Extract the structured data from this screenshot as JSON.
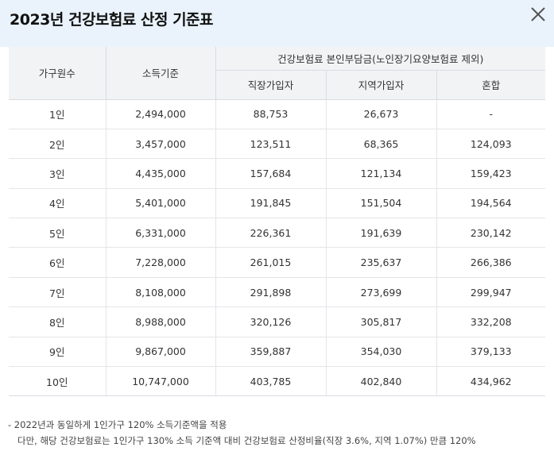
{
  "header": {
    "title": "2023년 건강보험료 산정 기준표",
    "close_icon": "close-icon"
  },
  "table": {
    "headers": {
      "household": "가구원수",
      "income": "소득기준",
      "group": "건강보험료 본인부담금(노인장기요양보험료 제외)",
      "employee": "직장가입자",
      "regional": "지역가입자",
      "mixed": "혼합"
    },
    "rows": [
      {
        "household": "1인",
        "income": "2,494,000",
        "employee": "88,753",
        "regional": "26,673",
        "mixed": "-"
      },
      {
        "household": "2인",
        "income": "3,457,000",
        "employee": "123,511",
        "regional": "68,365",
        "mixed": "124,093"
      },
      {
        "household": "3인",
        "income": "4,435,000",
        "employee": "157,684",
        "regional": "121,134",
        "mixed": "159,423"
      },
      {
        "household": "4인",
        "income": "5,401,000",
        "employee": "191,845",
        "regional": "151,504",
        "mixed": "194,564"
      },
      {
        "household": "5인",
        "income": "6,331,000",
        "employee": "226,361",
        "regional": "191,639",
        "mixed": "230,142"
      },
      {
        "household": "6인",
        "income": "7,228,000",
        "employee": "261,015",
        "regional": "235,637",
        "mixed": "266,386"
      },
      {
        "household": "7인",
        "income": "8,108,000",
        "employee": "291,898",
        "regional": "273,699",
        "mixed": "299,947"
      },
      {
        "household": "8인",
        "income": "8,988,000",
        "employee": "320,126",
        "regional": "305,817",
        "mixed": "332,208"
      },
      {
        "household": "9인",
        "income": "9,867,000",
        "employee": "359,887",
        "regional": "354,030",
        "mixed": "379,133"
      },
      {
        "household": "10인",
        "income": "10,747,000",
        "employee": "403,785",
        "regional": "402,840",
        "mixed": "434,962"
      }
    ]
  },
  "notes": {
    "line1": "- 2022년과 동일하게 1인가구 120% 소득기준액을 적용",
    "line2": "다만, 해당 건강보험료는 1인가구 130% 소득 기준액 대비 건강보험료 산정비율(직장 3.6%, 지역 1.07%) 만큼 120%"
  }
}
